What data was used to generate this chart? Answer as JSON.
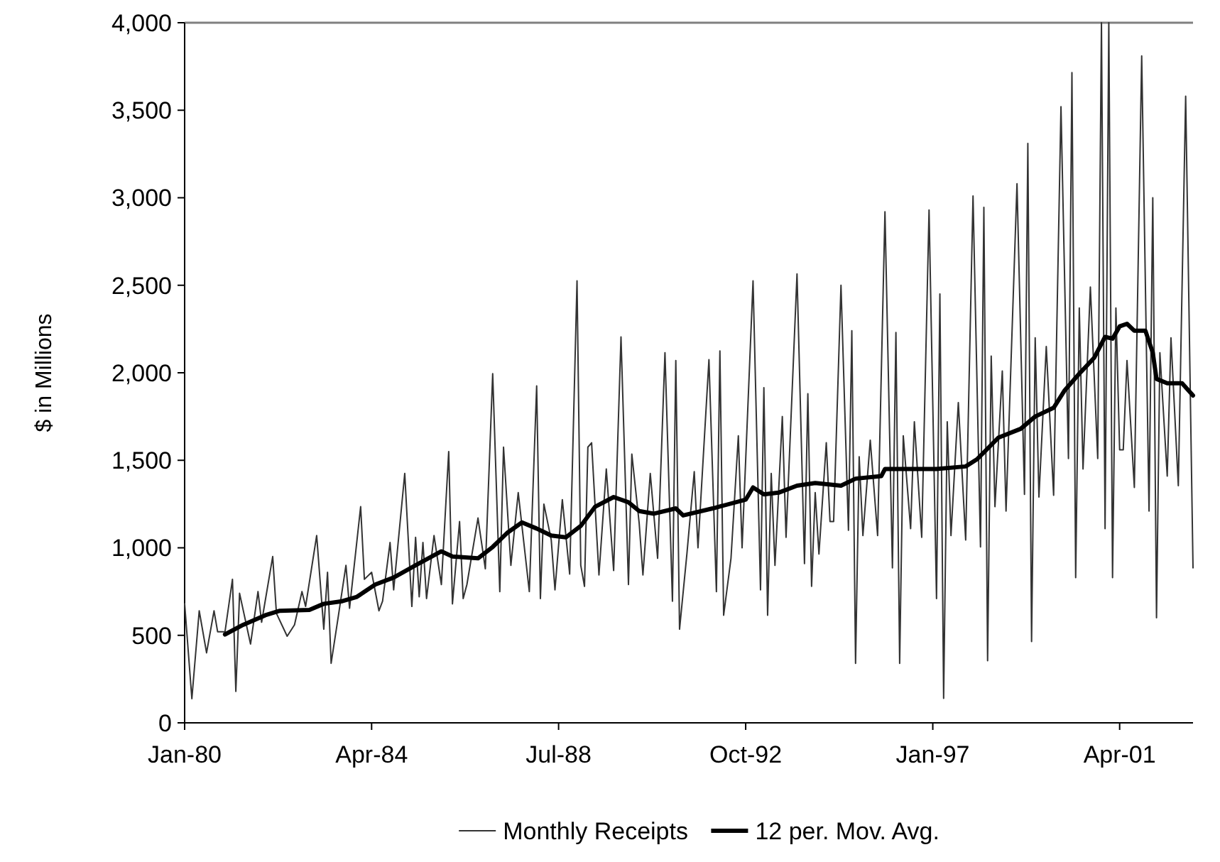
{
  "chart_data": {
    "type": "line",
    "ylabel": "$ in Millions",
    "xlim": [
      "1980-01",
      "2002-12"
    ],
    "ylim": [
      0,
      4000
    ],
    "xticks": [
      {
        "value": "1980-01",
        "label": "Jan-80"
      },
      {
        "value": "1984-04",
        "label": "Apr-84"
      },
      {
        "value": "1988-07",
        "label": "Jul-88"
      },
      {
        "value": "1992-10",
        "label": "Oct-92"
      },
      {
        "value": "1997-01",
        "label": "Jan-97"
      },
      {
        "value": "2001-04",
        "label": "Apr-01"
      }
    ],
    "yticks": [
      0,
      {
        "value": 500,
        "label": "500"
      },
      {
        "value": 1000,
        "label": "1,000"
      },
      {
        "value": 1500,
        "label": "1,500"
      },
      {
        "value": 2000,
        "label": "2,000"
      },
      {
        "value": 2500,
        "label": "2,500"
      },
      {
        "value": 3000,
        "label": "3,000"
      },
      {
        "value": 3500,
        "label": "3,500"
      },
      {
        "value": 4000,
        "label": "4,000"
      }
    ],
    "grid": false,
    "legend": "bottom",
    "marker": "none",
    "line_style": "solid",
    "series": [
      {
        "name": "Monthly Receipts",
        "color": "#333333",
        "x": [
          "1980-01",
          "1980-03",
          "1980-05",
          "1980-07",
          "1980-09",
          "1980-10",
          "1980-12",
          "1981-02",
          "1981-03",
          "1981-04",
          "1981-07",
          "1981-09",
          "1981-10",
          "1982-01",
          "1982-02",
          "1982-05",
          "1982-07",
          "1982-09",
          "1982-10",
          "1983-01",
          "1983-03",
          "1983-04",
          "1983-05",
          "1983-07",
          "1983-09",
          "1983-10",
          "1984-01",
          "1984-02",
          "1984-04",
          "1984-06",
          "1984-07",
          "1984-09",
          "1984-10",
          "1985-01",
          "1985-03",
          "1985-04",
          "1985-05",
          "1985-06",
          "1985-07",
          "1985-09",
          "1985-11",
          "1986-01",
          "1986-02",
          "1986-04",
          "1986-05",
          "1986-06",
          "1986-09",
          "1986-11",
          "1987-01",
          "1987-03",
          "1987-04",
          "1987-06",
          "1987-08",
          "1987-11",
          "1988-01",
          "1988-02",
          "1988-03",
          "1988-05",
          "1988-06",
          "1988-08",
          "1988-10",
          "1988-12",
          "1989-01",
          "1989-02",
          "1989-03",
          "1989-04",
          "1989-06",
          "1989-08",
          "1989-10",
          "1989-12",
          "1990-02",
          "1990-03",
          "1990-05",
          "1990-06",
          "1990-08",
          "1990-10",
          "1990-12",
          "1991-02",
          "1991-03",
          "1991-04",
          "1991-06",
          "1991-08",
          "1991-09",
          "1991-12",
          "1992-02",
          "1992-03",
          "1992-04",
          "1992-06",
          "1992-08",
          "1992-09",
          "1992-12",
          "1993-02",
          "1993-03",
          "1993-04",
          "1993-05",
          "1993-06",
          "1993-08",
          "1993-09",
          "1993-12",
          "1994-02",
          "1994-03",
          "1994-04",
          "1994-05",
          "1994-06",
          "1994-08",
          "1994-09",
          "1994-10",
          "1994-12",
          "1995-02",
          "1995-03",
          "1995-04",
          "1995-05",
          "1995-06",
          "1995-08",
          "1995-10",
          "1995-12",
          "1996-02",
          "1996-03",
          "1996-04",
          "1996-05",
          "1996-07",
          "1996-08",
          "1996-10",
          "1996-12",
          "1997-02",
          "1997-03",
          "1997-04",
          "1997-05",
          "1997-06",
          "1997-08",
          "1997-10",
          "1997-12",
          "1998-02",
          "1998-03",
          "1998-04",
          "1998-05",
          "1998-06",
          "1998-08",
          "1998-09",
          "1998-12",
          "1999-02",
          "1999-03",
          "1999-04",
          "1999-05",
          "1999-06",
          "1999-08",
          "1999-10",
          "1999-12",
          "2000-02",
          "2000-03",
          "2000-04",
          "2000-05",
          "2000-06",
          "2000-08",
          "2000-10",
          "2000-11",
          "2000-12",
          "2001-01",
          "2001-02",
          "2001-03",
          "2001-04",
          "2001-05",
          "2001-06",
          "2001-08",
          "2001-10",
          "2001-12",
          "2002-01",
          "2002-02",
          "2002-03",
          "2002-05",
          "2002-06",
          "2002-08",
          "2002-10",
          "2002-12"
        ],
        "values": [
          681,
          138,
          640,
          400,
          640,
          520,
          520,
          820,
          180,
          740,
          450,
          750,
          575,
          950,
          625,
          495,
          560,
          750,
          665,
          1070,
          535,
          860,
          340,
          615,
          900,
          655,
          1235,
          820,
          860,
          640,
          695,
          1030,
          760,
          1425,
          665,
          1060,
          720,
          1030,
          710,
          1070,
          790,
          1550,
          680,
          1150,
          710,
          790,
          1170,
          880,
          1995,
          750,
          1575,
          900,
          1315,
          750,
          1925,
          710,
          1250,
          1045,
          760,
          1275,
          850,
          2525,
          900,
          780,
          1575,
          1600,
          845,
          1450,
          870,
          2205,
          790,
          1535,
          1140,
          845,
          1425,
          940,
          2115,
          695,
          2070,
          535,
          965,
          1435,
          1000,
          2075,
          750,
          2125,
          615,
          940,
          1640,
          1000,
          2525,
          760,
          1915,
          615,
          1425,
          900,
          1750,
          1060,
          2565,
          910,
          1880,
          780,
          1315,
          965,
          1600,
          1150,
          1150,
          2500,
          1100,
          2240,
          340,
          1520,
          1070,
          1615,
          1070,
          2920,
          885,
          2230,
          340,
          1640,
          1110,
          1720,
          1060,
          2930,
          710,
          2450,
          140,
          1720,
          1070,
          1830,
          1045,
          3010,
          1005,
          2945,
          355,
          2095,
          1235,
          2010,
          1210,
          3080,
          1305,
          3310,
          465,
          2200,
          1290,
          2150,
          1300,
          3520,
          1510,
          3715,
          830,
          2370,
          1450,
          2490,
          1510,
          4000,
          1110,
          4000,
          830,
          2370,
          1560,
          1560,
          2070,
          1345,
          3810,
          1210,
          3000,
          600,
          2115,
          1410,
          2200,
          1355,
          3580,
          885
        ]
      },
      {
        "name": "12 per. Mov. Avg.",
        "color": "#000000",
        "x": [
          "1980-12",
          "1981-05",
          "1981-11",
          "1982-03",
          "1982-11",
          "1983-03",
          "1983-08",
          "1983-12",
          "1984-05",
          "1984-10",
          "1985-04",
          "1985-11",
          "1986-02",
          "1986-09",
          "1987-01",
          "1987-05",
          "1987-09",
          "1988-01",
          "1988-05",
          "1988-09",
          "1989-01",
          "1989-05",
          "1989-10",
          "1990-02",
          "1990-05",
          "1990-09",
          "1991-03",
          "1991-05",
          "1992-01",
          "1992-10",
          "1992-12",
          "1993-03",
          "1993-07",
          "1993-12",
          "1994-05",
          "1994-12",
          "1995-04",
          "1995-11",
          "1995-12",
          "1996-07",
          "1997-02",
          "1997-10",
          "1998-01",
          "1998-03",
          "1998-07",
          "1999-01",
          "1999-05",
          "1999-10",
          "2000-01",
          "2000-05",
          "2000-09",
          "2000-12",
          "2001-02",
          "2001-04",
          "2001-06",
          "2001-08",
          "2001-11",
          "2002-01",
          "2002-02",
          "2002-05",
          "2002-09",
          "2002-12"
        ],
        "values": [
          505,
          560,
          615,
          640,
          645,
          680,
          695,
          720,
          790,
          830,
          900,
          980,
          950,
          940,
          1005,
          1085,
          1145,
          1110,
          1070,
          1060,
          1125,
          1235,
          1290,
          1260,
          1210,
          1195,
          1225,
          1185,
          1225,
          1275,
          1345,
          1305,
          1315,
          1355,
          1370,
          1355,
          1395,
          1410,
          1450,
          1450,
          1450,
          1465,
          1505,
          1545,
          1630,
          1680,
          1750,
          1800,
          1900,
          1995,
          2085,
          2205,
          2195,
          2265,
          2280,
          2240,
          2240,
          2115,
          1965,
          1940,
          1940,
          1870
        ]
      }
    ]
  }
}
